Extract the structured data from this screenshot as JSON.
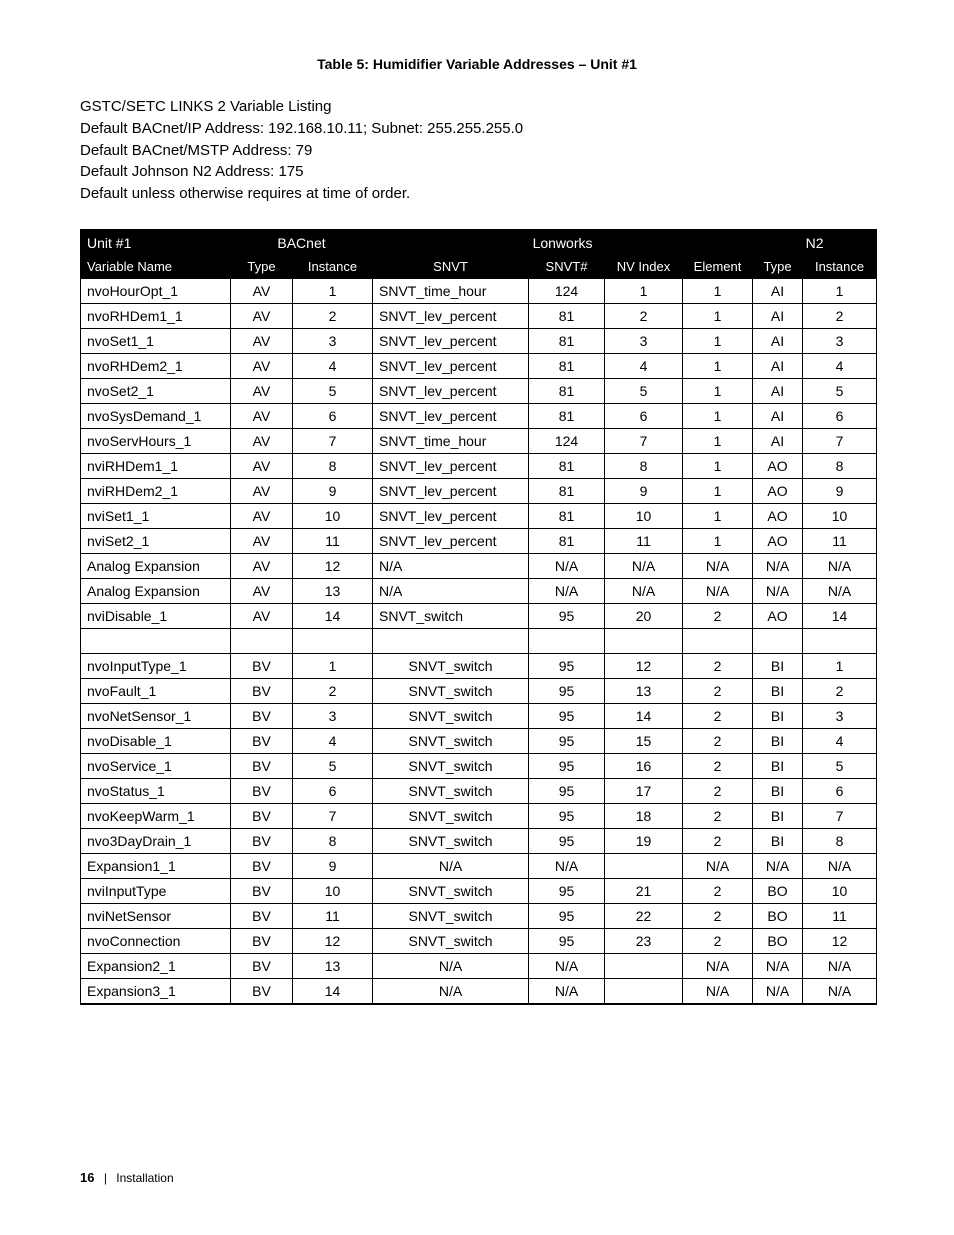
{
  "title": "Table 5:   Humidifier Variable Addresses  – Unit #1",
  "intro": [
    "GSTC/SETC LINKS 2 Variable Listing",
    "Default BACnet/IP Address: 192.168.10.11; Subnet: 255.255.255.0",
    "Default BACnet/MSTP Address: 79",
    "Default Johnson N2 Address: 175",
    "Default unless otherwise requires at time of order."
  ],
  "header": {
    "unit": "Unit #1",
    "bacnet": "BACnet",
    "lonworks": "Lonworks",
    "n2": "N2"
  },
  "columns": {
    "variable_name": "Variable Name",
    "b_type": "Type",
    "b_instance": "Instance",
    "snvt": "SNVT",
    "snvt_num": "SNVT#",
    "nv_index": "NV Index",
    "element": "Element",
    "n_type": "Type",
    "n_instance": "Instance"
  },
  "rows_a": [
    {
      "name": "nvoHourOpt_1",
      "btype": "AV",
      "binst": "1",
      "snvt": "SNVT_time_hour",
      "snvtn": "124",
      "nvidx": "1",
      "elem": "1",
      "ntype": "AI",
      "ninst": "1",
      "snvt_align": "left"
    },
    {
      "name": "nvoRHDem1_1",
      "btype": "AV",
      "binst": "2",
      "snvt": "SNVT_lev_percent",
      "snvtn": "81",
      "nvidx": "2",
      "elem": "1",
      "ntype": "AI",
      "ninst": "2",
      "snvt_align": "left"
    },
    {
      "name": "nvoSet1_1",
      "btype": "AV",
      "binst": "3",
      "snvt": "SNVT_lev_percent",
      "snvtn": "81",
      "nvidx": "3",
      "elem": "1",
      "ntype": "AI",
      "ninst": "3",
      "snvt_align": "left"
    },
    {
      "name": "nvoRHDem2_1",
      "btype": "AV",
      "binst": "4",
      "snvt": "SNVT_lev_percent",
      "snvtn": "81",
      "nvidx": "4",
      "elem": "1",
      "ntype": "AI",
      "ninst": "4",
      "snvt_align": "left"
    },
    {
      "name": "nvoSet2_1",
      "btype": "AV",
      "binst": "5",
      "snvt": "SNVT_lev_percent",
      "snvtn": "81",
      "nvidx": "5",
      "elem": "1",
      "ntype": "AI",
      "ninst": "5",
      "snvt_align": "left"
    },
    {
      "name": "nvoSysDemand_1",
      "btype": "AV",
      "binst": "6",
      "snvt": "SNVT_lev_percent",
      "snvtn": "81",
      "nvidx": "6",
      "elem": "1",
      "ntype": "AI",
      "ninst": "6",
      "snvt_align": "left"
    },
    {
      "name": "nvoServHours_1",
      "btype": "AV",
      "binst": "7",
      "snvt": "SNVT_time_hour",
      "snvtn": "124",
      "nvidx": "7",
      "elem": "1",
      "ntype": "AI",
      "ninst": "7",
      "snvt_align": "left"
    },
    {
      "name": "nviRHDem1_1",
      "btype": "AV",
      "binst": "8",
      "snvt": "SNVT_lev_percent",
      "snvtn": "81",
      "nvidx": "8",
      "elem": "1",
      "ntype": "AO",
      "ninst": "8",
      "snvt_align": "left"
    },
    {
      "name": "nviRHDem2_1",
      "btype": "AV",
      "binst": "9",
      "snvt": "SNVT_lev_percent",
      "snvtn": "81",
      "nvidx": "9",
      "elem": "1",
      "ntype": "AO",
      "ninst": "9",
      "snvt_align": "left"
    },
    {
      "name": "nviSet1_1",
      "btype": "AV",
      "binst": "10",
      "snvt": "SNVT_lev_percent",
      "snvtn": "81",
      "nvidx": "10",
      "elem": "1",
      "ntype": "AO",
      "ninst": "10",
      "snvt_align": "left"
    },
    {
      "name": "nviSet2_1",
      "btype": "AV",
      "binst": "11",
      "snvt": "SNVT_lev_percent",
      "snvtn": "81",
      "nvidx": "11",
      "elem": "1",
      "ntype": "AO",
      "ninst": "11",
      "snvt_align": "left"
    },
    {
      "name": "Analog Expansion",
      "btype": "AV",
      "binst": "12",
      "snvt": "N/A",
      "snvtn": "N/A",
      "nvidx": "N/A",
      "elem": "N/A",
      "ntype": "N/A",
      "ninst": "N/A",
      "snvt_align": "left"
    },
    {
      "name": "Analog Expansion",
      "btype": "AV",
      "binst": "13",
      "snvt": "N/A",
      "snvtn": "N/A",
      "nvidx": "N/A",
      "elem": "N/A",
      "ntype": "N/A",
      "ninst": "N/A",
      "snvt_align": "left"
    },
    {
      "name": "nviDisable_1",
      "btype": "AV",
      "binst": "14",
      "snvt": "SNVT_switch",
      "snvtn": "95",
      "nvidx": "20",
      "elem": "2",
      "ntype": "AO",
      "ninst": "14",
      "snvt_align": "left"
    }
  ],
  "rows_b": [
    {
      "name": "nvoInputType_1",
      "btype": "BV",
      "binst": "1",
      "snvt": "SNVT_switch",
      "snvtn": "95",
      "nvidx": "12",
      "elem": "2",
      "ntype": "BI",
      "ninst": "1",
      "snvt_align": "center"
    },
    {
      "name": "nvoFault_1",
      "btype": "BV",
      "binst": "2",
      "snvt": "SNVT_switch",
      "snvtn": "95",
      "nvidx": "13",
      "elem": "2",
      "ntype": "BI",
      "ninst": "2",
      "snvt_align": "center"
    },
    {
      "name": "nvoNetSensor_1",
      "btype": "BV",
      "binst": "3",
      "snvt": "SNVT_switch",
      "snvtn": "95",
      "nvidx": "14",
      "elem": "2",
      "ntype": "BI",
      "ninst": "3",
      "snvt_align": "center"
    },
    {
      "name": "nvoDisable_1",
      "btype": "BV",
      "binst": "4",
      "snvt": "SNVT_switch",
      "snvtn": "95",
      "nvidx": "15",
      "elem": "2",
      "ntype": "BI",
      "ninst": "4",
      "snvt_align": "center"
    },
    {
      "name": "nvoService_1",
      "btype": "BV",
      "binst": "5",
      "snvt": "SNVT_switch",
      "snvtn": "95",
      "nvidx": "16",
      "elem": "2",
      "ntype": "BI",
      "ninst": "5",
      "snvt_align": "center"
    },
    {
      "name": "nvoStatus_1",
      "btype": "BV",
      "binst": "6",
      "snvt": "SNVT_switch",
      "snvtn": "95",
      "nvidx": "17",
      "elem": "2",
      "ntype": "BI",
      "ninst": "6",
      "snvt_align": "center"
    },
    {
      "name": "nvoKeepWarm_1",
      "btype": "BV",
      "binst": "7",
      "snvt": "SNVT_switch",
      "snvtn": "95",
      "nvidx": "18",
      "elem": "2",
      "ntype": "BI",
      "ninst": "7",
      "snvt_align": "center"
    },
    {
      "name": "nvo3DayDrain_1",
      "btype": "BV",
      "binst": "8",
      "snvt": "SNVT_switch",
      "snvtn": "95",
      "nvidx": "19",
      "elem": "2",
      "ntype": "BI",
      "ninst": "8",
      "snvt_align": "center"
    },
    {
      "name": "Expansion1_1",
      "btype": "BV",
      "binst": "9",
      "snvt": "N/A",
      "snvtn": "N/A",
      "nvidx": "",
      "elem": "N/A",
      "ntype": "N/A",
      "ninst": "N/A",
      "snvt_align": "center"
    },
    {
      "name": "nviInputType",
      "btype": "BV",
      "binst": "10",
      "snvt": "SNVT_switch",
      "snvtn": "95",
      "nvidx": "21",
      "elem": "2",
      "ntype": "BO",
      "ninst": "10",
      "snvt_align": "center"
    },
    {
      "name": "nviNetSensor",
      "btype": "BV",
      "binst": "11",
      "snvt": "SNVT_switch",
      "snvtn": "95",
      "nvidx": "22",
      "elem": "2",
      "ntype": "BO",
      "ninst": "11",
      "snvt_align": "center"
    },
    {
      "name": "nvoConnection",
      "btype": "BV",
      "binst": "12",
      "snvt": "SNVT_switch",
      "snvtn": "95",
      "nvidx": "23",
      "elem": "2",
      "ntype": "BO",
      "ninst": "12",
      "snvt_align": "center"
    },
    {
      "name": "Expansion2_1",
      "btype": "BV",
      "binst": "13",
      "snvt": "N/A",
      "snvtn": "N/A",
      "nvidx": "",
      "elem": "N/A",
      "ntype": "N/A",
      "ninst": "N/A",
      "snvt_align": "center"
    },
    {
      "name": "Expansion3_1",
      "btype": "BV",
      "binst": "14",
      "snvt": "N/A",
      "snvtn": "N/A",
      "nvidx": "",
      "elem": "N/A",
      "ntype": "N/A",
      "ninst": "N/A",
      "snvt_align": "center"
    }
  ],
  "footer": {
    "page": "16",
    "separator": "|",
    "section": "Installation"
  }
}
